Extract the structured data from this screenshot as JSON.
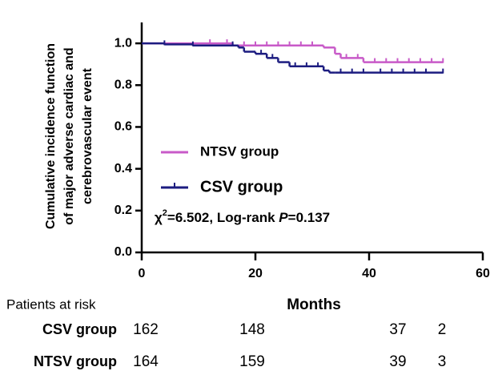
{
  "chart_data": {
    "type": "step",
    "y_label": [
      "Cumulative incidence function",
      "of major adverse cardiac and",
      "cerebrovascular event"
    ],
    "x_label": "Months",
    "xlim": [
      0,
      60
    ],
    "xticks": [
      0,
      20,
      40,
      60
    ],
    "ylim": [
      0,
      1.1
    ],
    "yticks": [
      {
        "value": 0,
        "label": "0.0"
      },
      0.2,
      0.4,
      0.6,
      0.8,
      {
        "value": 1,
        "label": "1.0"
      }
    ],
    "series": [
      {
        "name": "NTSV group",
        "color": "#c85ac8",
        "x": [
          0,
          16,
          32,
          34,
          35,
          39,
          53
        ],
        "values": [
          1.0,
          0.99,
          0.98,
          0.95,
          0.93,
          0.91,
          0.91
        ],
        "censor_times": [
          12,
          15,
          18,
          20,
          22,
          24,
          26,
          28,
          30,
          36,
          38,
          41,
          43,
          45,
          47,
          49,
          51,
          53
        ]
      },
      {
        "name": "CSV group",
        "color": "#1c1c80",
        "x": [
          0,
          4,
          9,
          17,
          18,
          20,
          22,
          24,
          26,
          32,
          33,
          34,
          53
        ],
        "values": [
          1.0,
          0.995,
          0.99,
          0.98,
          0.96,
          0.95,
          0.93,
          0.91,
          0.89,
          0.87,
          0.86,
          0.86,
          0.86
        ],
        "censor_times": [
          4,
          9,
          16,
          21,
          23,
          27,
          29,
          31,
          35,
          37,
          39,
          42,
          44,
          46,
          48,
          50,
          53
        ]
      }
    ],
    "annotation": [
      "χ",
      "2",
      "=6.502, Log-rank ",
      "P",
      "=0.137"
    ],
    "risk_table": {
      "title": "Patients at risk",
      "rows": [
        {
          "name": "CSV group",
          "counts": [
            "162",
            "148",
            "37",
            "2"
          ]
        },
        {
          "name": "NTSV group",
          "counts": [
            "164",
            "159",
            "39",
            "3"
          ]
        }
      ]
    }
  }
}
